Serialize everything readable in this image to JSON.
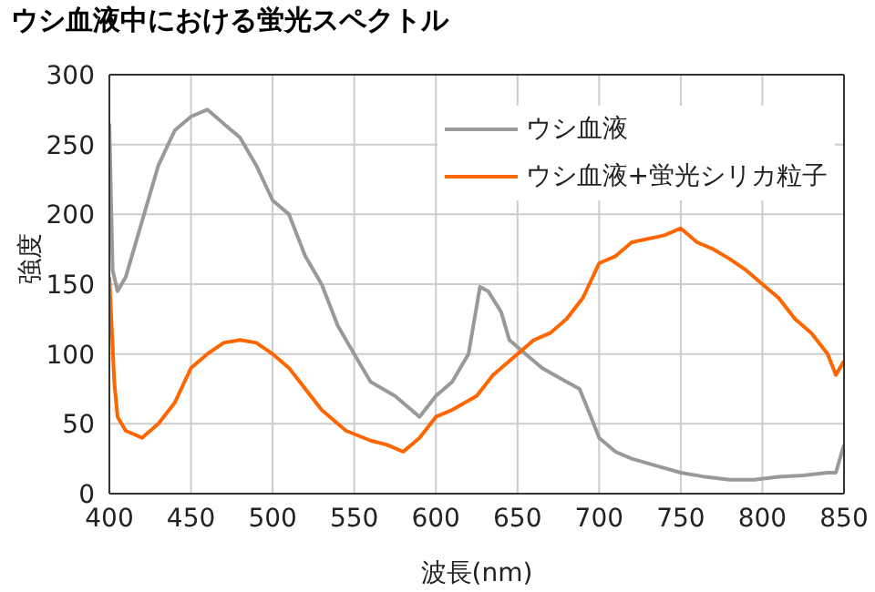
{
  "chart_data": {
    "type": "line",
    "title": "ウシ血液中における蛍光スペクトル",
    "xlabel": "波長(nm)",
    "ylabel": "強度",
    "xlim": [
      400,
      850
    ],
    "xticks": [
      400,
      450,
      500,
      550,
      600,
      650,
      700,
      750,
      800,
      850
    ],
    "ylim": [
      0,
      300
    ],
    "yticks": [
      0,
      50,
      100,
      150,
      200,
      250,
      300
    ],
    "grid": true,
    "legend": "top right",
    "marker": "none",
    "series": [
      {
        "name": "ウシ血液",
        "color": "#999999",
        "x": [
          400,
          402,
          405,
          410,
          420,
          430,
          440,
          450,
          460,
          470,
          480,
          490,
          500,
          510,
          520,
          530,
          540,
          550,
          560,
          575,
          590,
          600,
          610,
          620,
          627,
          632,
          640,
          645,
          655,
          665,
          680,
          688,
          695,
          700,
          710,
          720,
          735,
          750,
          765,
          780,
          795,
          810,
          825,
          840,
          845,
          850
        ],
        "values": [
          265,
          160,
          145,
          155,
          195,
          235,
          260,
          270,
          275,
          265,
          255,
          235,
          210,
          200,
          170,
          150,
          120,
          100,
          80,
          70,
          55,
          70,
          80,
          100,
          148,
          145,
          130,
          110,
          100,
          90,
          80,
          75,
          55,
          40,
          30,
          25,
          20,
          15,
          12,
          10,
          10,
          12,
          13,
          15,
          15,
          35
        ]
      },
      {
        "name": "ウシ血液+蛍光シリカ粒子",
        "color": "#ff6600",
        "x": [
          400,
          403,
          405,
          410,
          420,
          430,
          440,
          450,
          460,
          470,
          480,
          490,
          500,
          510,
          520,
          530,
          545,
          560,
          570,
          580,
          590,
          600,
          610,
          625,
          635,
          650,
          660,
          670,
          680,
          690,
          700,
          710,
          720,
          740,
          750,
          760,
          770,
          780,
          790,
          800,
          810,
          820,
          830,
          840,
          845,
          850
        ],
        "values": [
          155,
          80,
          55,
          45,
          40,
          50,
          65,
          90,
          100,
          108,
          110,
          108,
          100,
          90,
          75,
          60,
          45,
          38,
          35,
          30,
          40,
          55,
          60,
          70,
          85,
          100,
          110,
          115,
          125,
          140,
          165,
          170,
          180,
          185,
          190,
          180,
          175,
          168,
          160,
          150,
          140,
          125,
          115,
          100,
          85,
          95
        ]
      }
    ]
  }
}
